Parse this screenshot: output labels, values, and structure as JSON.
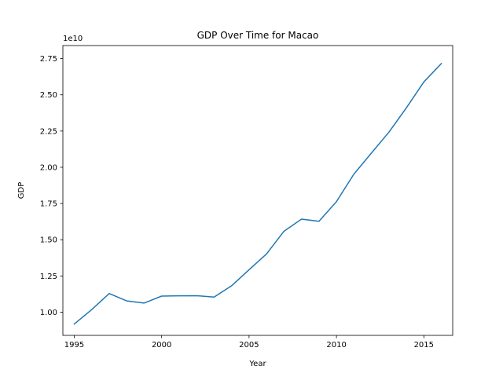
{
  "chart_data": {
    "type": "line",
    "title": "GDP Over Time for Macao",
    "xlabel": "Year",
    "ylabel": "GDP",
    "offset_label": "1e10",
    "xlim": [
      1994.35,
      2016.65
    ],
    "ylim": [
      0.84,
      2.84
    ],
    "xticks": [
      1995,
      2000,
      2005,
      2010,
      2015
    ],
    "yticks": [
      1.0,
      1.25,
      1.5,
      1.75,
      2.0,
      2.25,
      2.5,
      2.75
    ],
    "ytick_labels": [
      "1.00",
      "1.25",
      "1.50",
      "1.75",
      "2.00",
      "2.25",
      "2.50",
      "2.75"
    ],
    "grid": false,
    "series": [
      {
        "color": "#1f77b4",
        "x": [
          1995,
          1996,
          1997,
          1998,
          1999,
          2000,
          2001,
          2002,
          2003,
          2004,
          2005,
          2006,
          2007,
          2008,
          2009,
          2010,
          2011,
          2012,
          2013,
          2014,
          2015,
          2016
        ],
        "values": [
          0.918,
          1.018,
          1.129,
          1.078,
          1.063,
          1.111,
          1.113,
          1.114,
          1.104,
          1.182,
          1.293,
          1.402,
          1.559,
          1.642,
          1.627,
          1.763,
          1.953,
          2.098,
          2.242,
          2.41,
          2.589,
          2.716
        ]
      }
    ]
  }
}
